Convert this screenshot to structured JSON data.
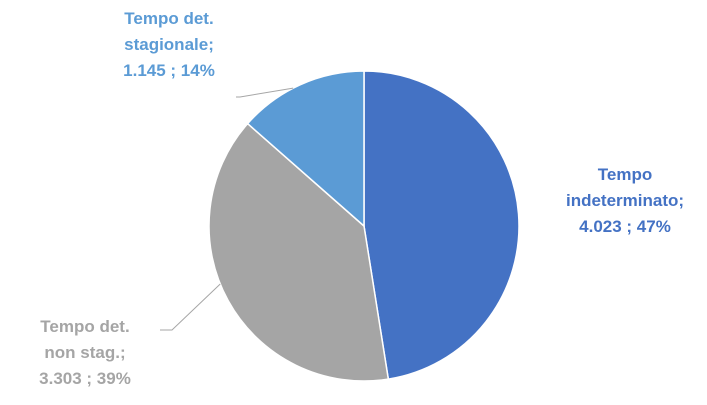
{
  "chart_data": {
    "type": "pie",
    "title": "",
    "slices": [
      {
        "name": "Tempo indeterminato",
        "value": 4023,
        "percent": 47,
        "color": "#4472C4",
        "label_lines": [
          "Tempo",
          "indeterminato;",
          "4.023 ; 47%"
        ]
      },
      {
        "name": "Tempo det. non stag.",
        "value": 3303,
        "percent": 39,
        "color": "#A5A5A5",
        "label_lines": [
          "Tempo det.",
          "non stag.;",
          "3.303 ; 39%"
        ]
      },
      {
        "name": "Tempo det. stagionale",
        "value": 1145,
        "percent": 14,
        "color": "#5B9BD5",
        "label_lines": [
          "Tempo det.",
          "stagionale;",
          "1.145 ; 14%"
        ]
      }
    ],
    "legend": "none"
  }
}
